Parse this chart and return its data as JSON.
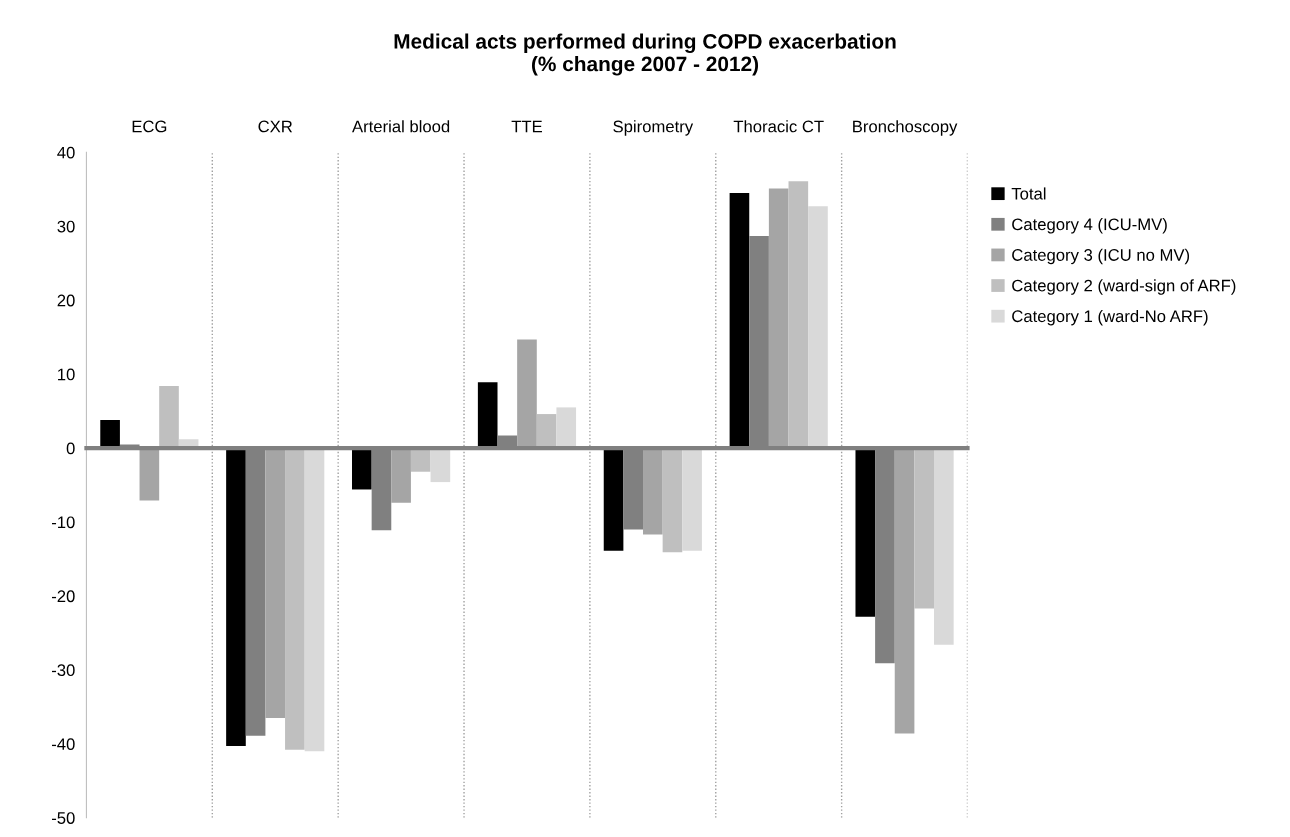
{
  "chart_data": {
    "type": "bar",
    "title": "Medical acts performed during COPD exacerbation\n(% change 2007 - 2012)",
    "categories": [
      "ECG",
      "CXR",
      "Arterial blood",
      "TTE",
      "Spirometry",
      "Thoracic CT",
      "Bronchoscopy"
    ],
    "series": [
      {
        "name": "Total",
        "color": "#000000",
        "values": [
          3.8,
          -40.3,
          -5.6,
          8.9,
          -13.9,
          34.5,
          -22.8
        ]
      },
      {
        "name": "Category 4 (ICU-MV)",
        "color": "#808080",
        "values": [
          0.5,
          -38.9,
          -11.1,
          1.7,
          -11.0,
          28.7,
          -29.1
        ]
      },
      {
        "name": "Category 3 (ICU no MV)",
        "color": "#a5a5a5",
        "values": [
          -7.1,
          -36.5,
          -7.4,
          14.7,
          -11.7,
          35.1,
          -38.6
        ]
      },
      {
        "name": "Category 2 (ward-sign of ARF)",
        "color": "#bfbfbf",
        "values": [
          8.4,
          -40.8,
          -3.2,
          4.6,
          -14.1,
          36.1,
          -21.7
        ]
      },
      {
        "name": "Category 1 (ward-No ARF)",
        "color": "#d9d9d9",
        "values": [
          1.2,
          -41.0,
          -4.6,
          5.5,
          -13.9,
          32.7,
          -26.6
        ]
      }
    ],
    "ylim": [
      -50,
      40
    ],
    "yticks": [
      -50,
      -40,
      -30,
      -20,
      -10,
      0,
      10,
      20,
      30,
      40
    ],
    "grid": "x",
    "legend": "right"
  }
}
